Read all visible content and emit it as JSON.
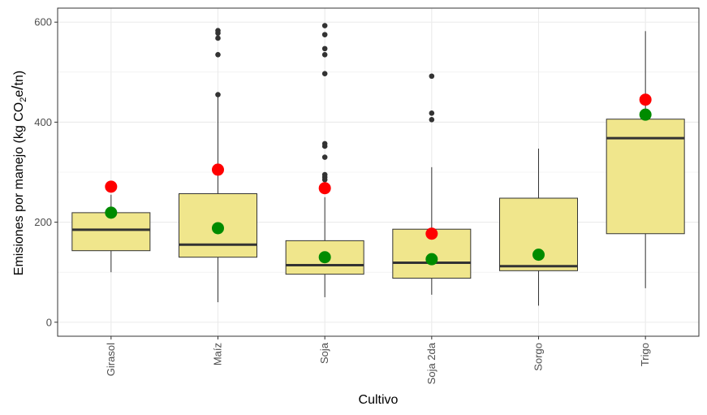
{
  "chart_data": {
    "type": "boxplot",
    "xlabel": "Cultivo",
    "ylabel": {
      "prefix": "Emisiones por manejo (kg CO",
      "subscript": "2",
      "mid": "e",
      "slash": "/",
      "suffix": "tn)"
    },
    "ylim": [
      -28,
      628
    ],
    "yticks": [
      0,
      200,
      400,
      600
    ],
    "grid": true,
    "colors": {
      "box_fill": "#f0e68c",
      "box_stroke": "#333333",
      "median": "#333333",
      "outlier": "#333333",
      "mean_marker": "#008b00",
      "red_marker": "#ff0000",
      "grid": "#ebebeb",
      "panel_border": "#333333"
    },
    "categories": [
      "Girasol",
      "Maíz",
      "Soja",
      "Soja 2da",
      "Sorgo",
      "Trigo"
    ],
    "boxes": [
      {
        "category": "Girasol",
        "whisker_low": 100,
        "q1": 143,
        "median": 185,
        "q3": 219,
        "whisker_high": 255,
        "outliers": [],
        "green": 219,
        "red": 271
      },
      {
        "category": "Maíz",
        "whisker_low": 40,
        "q1": 130,
        "median": 155,
        "q3": 257,
        "whisker_high": 450,
        "outliers": [
          455,
          535,
          568,
          578,
          583
        ],
        "green": 188,
        "red": 305
      },
      {
        "category": "Soja",
        "whisker_low": 50,
        "q1": 96,
        "median": 114,
        "q3": 163,
        "whisker_high": 250,
        "outliers": [
          285,
          290,
          295,
          330,
          352,
          357,
          497,
          535,
          547,
          575,
          593
        ],
        "green": 130,
        "red": 268
      },
      {
        "category": "Soja 2da",
        "whisker_low": 55,
        "q1": 88,
        "median": 119,
        "q3": 186,
        "whisker_high": 310,
        "outliers": [
          405,
          418,
          492
        ],
        "green": 126,
        "red": 177
      },
      {
        "category": "Sorgo",
        "whisker_low": 33,
        "q1": 103,
        "median": 112,
        "q3": 248,
        "whisker_high": 347,
        "outliers": [],
        "green": 135,
        "red": null
      },
      {
        "category": "Trigo",
        "whisker_low": 68,
        "q1": 177,
        "median": 368,
        "q3": 406,
        "whisker_high": 582,
        "outliers": [],
        "green": 415,
        "red": 445
      }
    ]
  }
}
